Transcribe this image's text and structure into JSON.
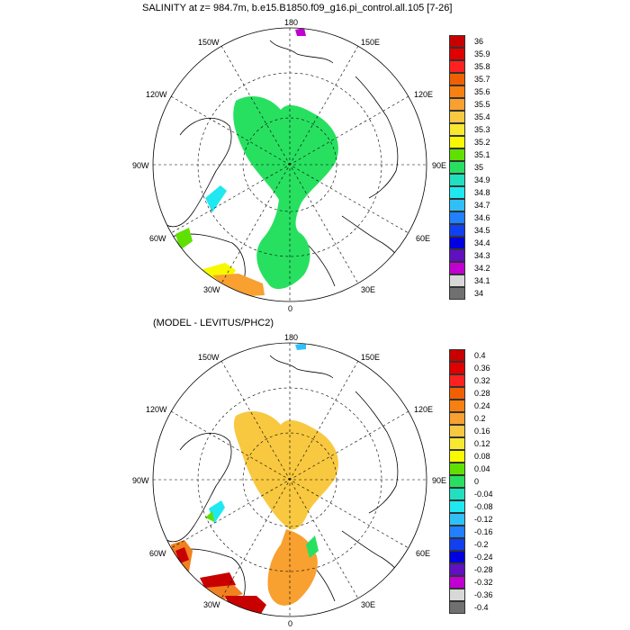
{
  "panels": [
    {
      "title": "SALINITY at z= 984.7m, b.e15.B1850.f09_g16.pi_control.all.105 [7-26]",
      "lon_labels": {
        "top": "180",
        "bottom": "0",
        "left": "90W",
        "right": "90E",
        "ul1": "150W",
        "ul2": "120W",
        "ur1": "150E",
        "ur2": "120E",
        "ll1": "60W",
        "ll2": "30W",
        "lr1": "60E",
        "lr2": "30E"
      },
      "colorbar": {
        "labels": [
          "36",
          "35.9",
          "35.8",
          "35.7",
          "35.6",
          "35.5",
          "35.4",
          "35.3",
          "35.2",
          "35.1",
          "35",
          "34.9",
          "34.8",
          "34.7",
          "34.6",
          "34.5",
          "34.4",
          "34.3",
          "34.2",
          "34.1",
          "34"
        ],
        "colors": [
          "#c80000",
          "#e00000",
          "#ff2020",
          "#f06000",
          "#f88010",
          "#f8a030",
          "#f8c840",
          "#f8e830",
          "#f8f800",
          "#60e000",
          "#28e060",
          "#20e0c0",
          "#20e8f0",
          "#30c0f8",
          "#2080ff",
          "#1040f0",
          "#0000e0",
          "#6010c0",
          "#c000d0",
          "#d8d8d8",
          "#707070"
        ]
      }
    },
    {
      "title": "(MODEL - LEVITUS/PHC2)",
      "lon_labels": {
        "top": "180",
        "bottom": "0",
        "left": "90W",
        "right": "90E",
        "ul1": "150W",
        "ul2": "120W",
        "ur1": "150E",
        "ur2": "120E",
        "ll1": "60W",
        "ll2": "30W",
        "lr1": "60E",
        "lr2": "30E"
      },
      "colorbar": {
        "labels": [
          "0.4",
          "0.36",
          "0.32",
          "0.28",
          "0.24",
          "0.2",
          "0.16",
          "0.12",
          "0.08",
          "0.04",
          "0",
          "-0.04",
          "-0.08",
          "-0.12",
          "-0.16",
          "-0.2",
          "-0.24",
          "-0.28",
          "-0.32",
          "-0.36",
          "-0.4"
        ],
        "colors": [
          "#c80000",
          "#e00000",
          "#ff2020",
          "#f06000",
          "#f88010",
          "#f8a030",
          "#f8c840",
          "#f8e830",
          "#f8f800",
          "#60e000",
          "#28e060",
          "#20e0c0",
          "#20e8f0",
          "#30c0f8",
          "#2080ff",
          "#1040f0",
          "#0000e0",
          "#6010c0",
          "#c000d0",
          "#d8d8d8",
          "#707070"
        ]
      }
    }
  ],
  "colors": {
    "green_field": "#28e060",
    "yellow_field": "#f8c840",
    "orange_field": "#f8a030",
    "cyan_patch": "#20e8f0",
    "magenta_patch": "#c000d0",
    "red_patch": "#c80000",
    "light_green": "#60e000",
    "yellow_bright": "#f8f800"
  }
}
